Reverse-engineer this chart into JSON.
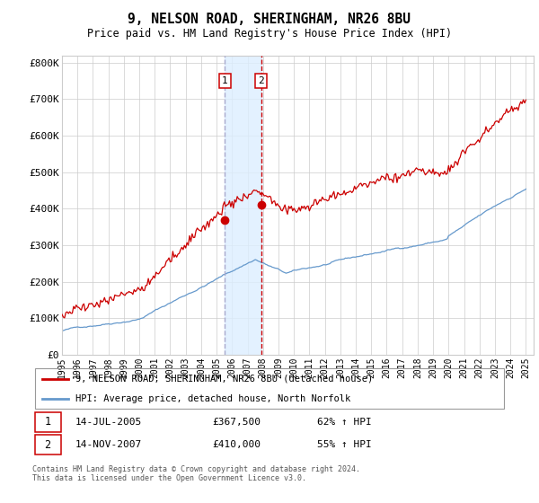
{
  "title": "9, NELSON ROAD, SHERINGHAM, NR26 8BU",
  "subtitle": "Price paid vs. HM Land Registry's House Price Index (HPI)",
  "ylabel_ticks": [
    "£0",
    "£100K",
    "£200K",
    "£300K",
    "£400K",
    "£500K",
    "£600K",
    "£700K",
    "£800K"
  ],
  "ytick_values": [
    0,
    100000,
    200000,
    300000,
    400000,
    500000,
    600000,
    700000,
    800000
  ],
  "ylim": [
    0,
    820000
  ],
  "xlim_start": 1995.0,
  "xlim_end": 2025.5,
  "transaction1": {
    "date_num": 2005.54,
    "price": 367500,
    "label": "1"
  },
  "transaction2": {
    "date_num": 2007.87,
    "price": 410000,
    "label": "2"
  },
  "legend_line1": "9, NELSON ROAD, SHERINGHAM, NR26 8BU (detached house)",
  "legend_line2": "HPI: Average price, detached house, North Norfolk",
  "footer": "Contains HM Land Registry data © Crown copyright and database right 2024.\nThis data is licensed under the Open Government Licence v3.0.",
  "transaction_label1": "14-JUL-2005",
  "transaction_price1": "£367,500",
  "transaction_hpi1": "62% ↑ HPI",
  "transaction_label2": "14-NOV-2007",
  "transaction_price2": "£410,000",
  "transaction_hpi2": "55% ↑ HPI",
  "line_color_red": "#CC0000",
  "line_color_blue": "#6699CC",
  "shading_color": "#DDEEFF",
  "vline_color": "#CC0000",
  "vline1_color": "#AAAACC",
  "marker_color_red": "#CC0000",
  "grid_color": "#CCCCCC",
  "background_color": "#FFFFFF"
}
